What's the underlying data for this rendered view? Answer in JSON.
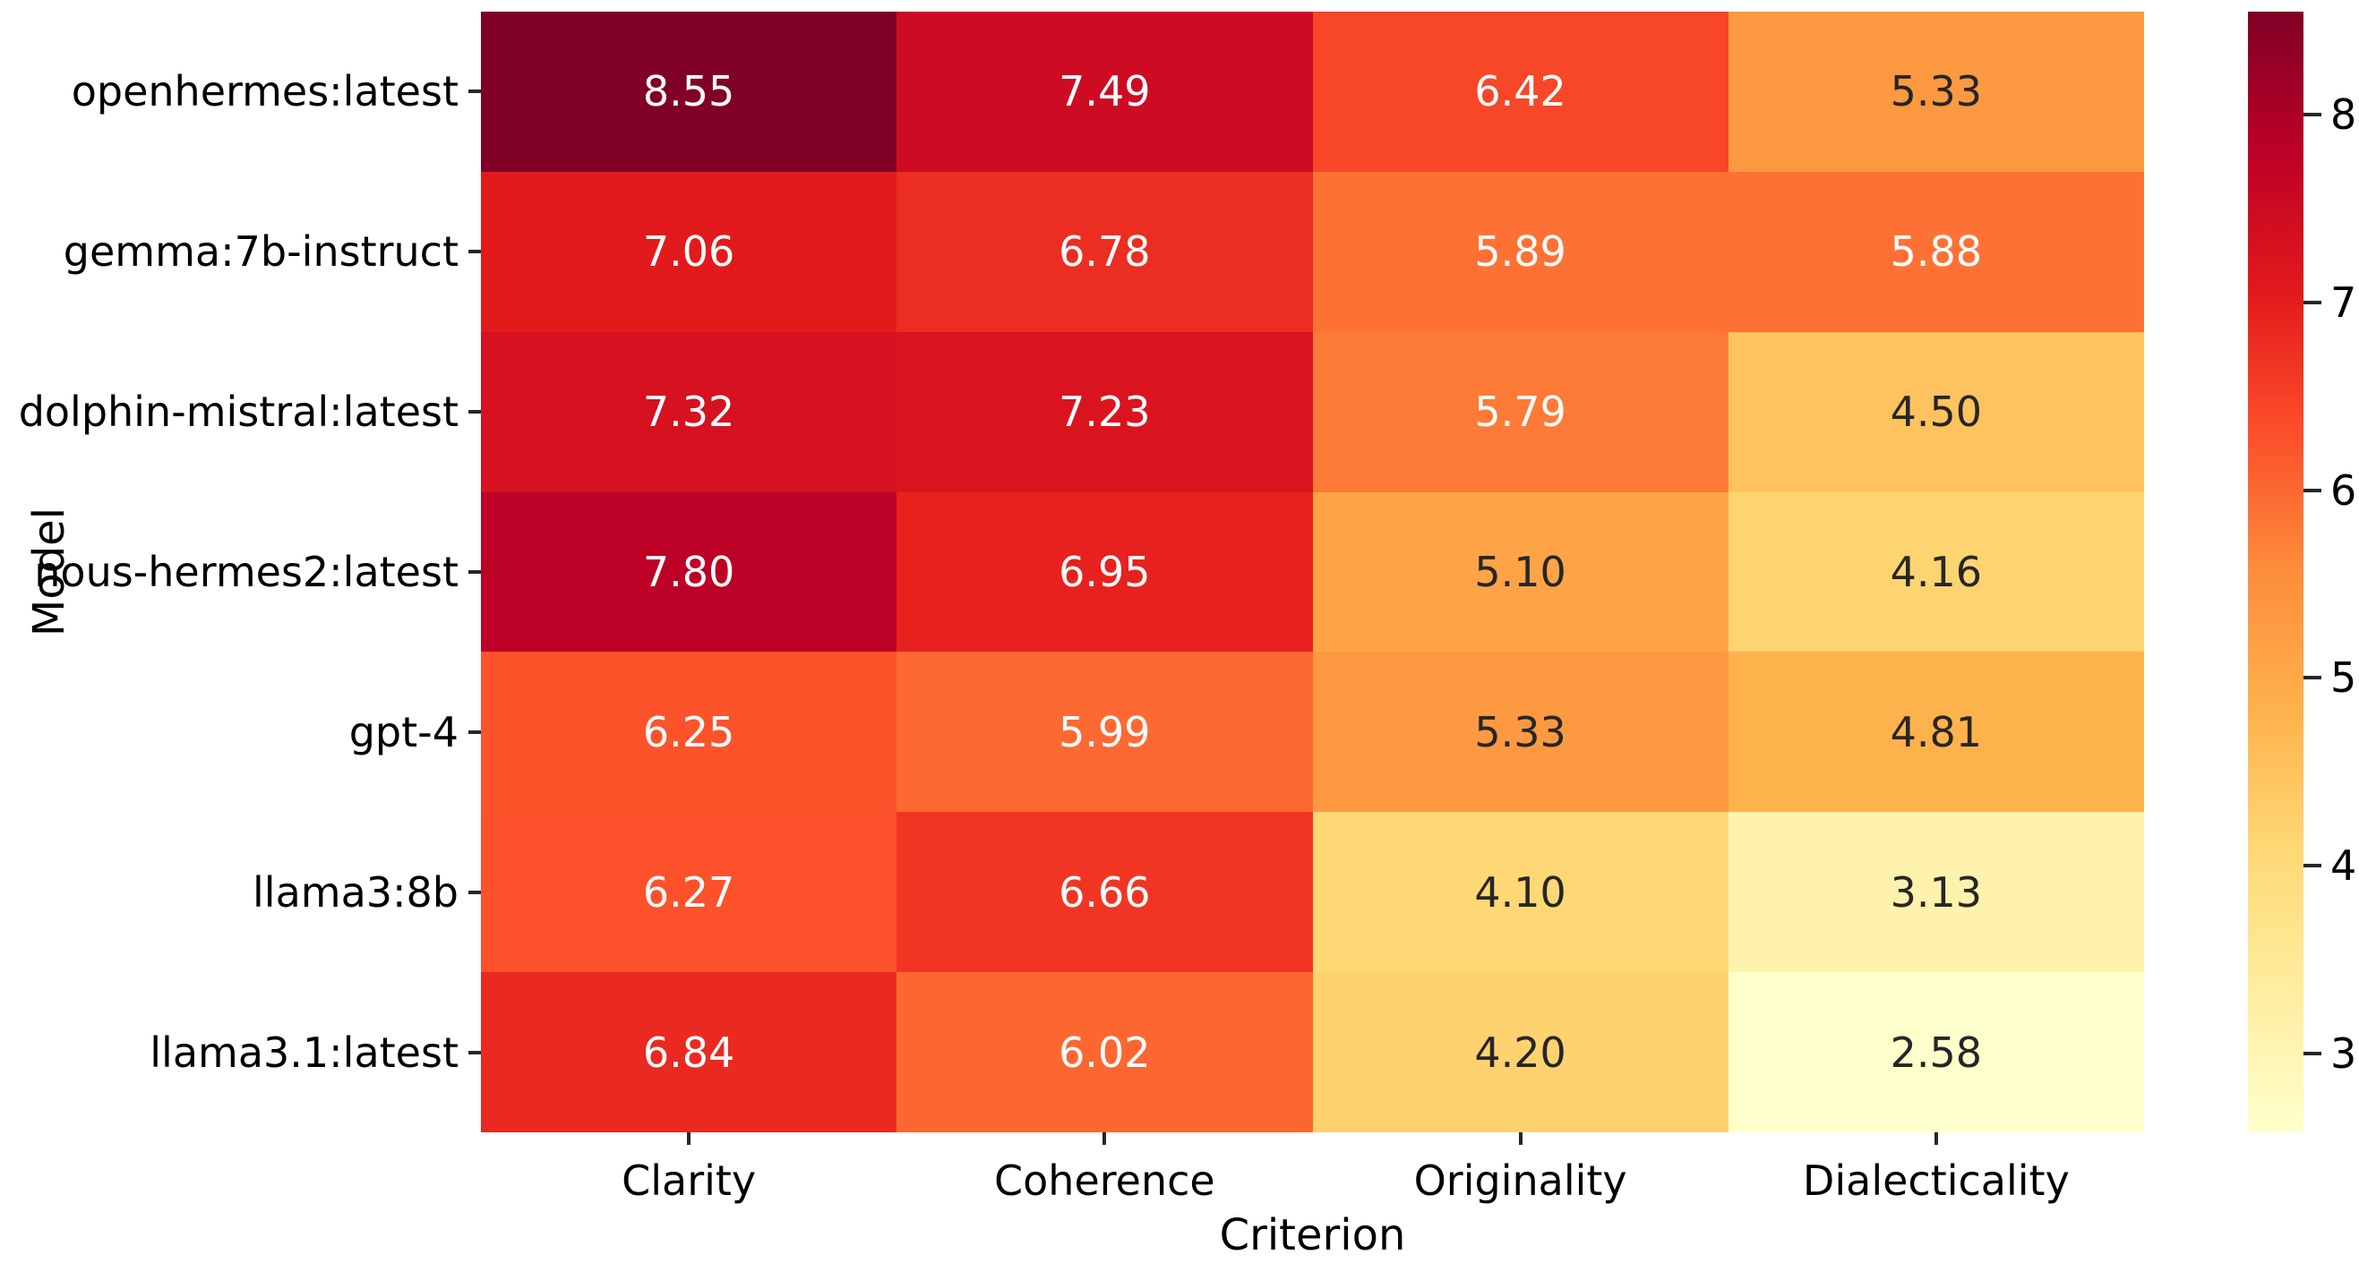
{
  "chart_data": {
    "type": "heatmap",
    "title": "",
    "xlabel": "Criterion",
    "ylabel": "Model",
    "x_categories": [
      "Clarity",
      "Coherence",
      "Originality",
      "Dialecticality"
    ],
    "y_categories": [
      "openhermes:latest",
      "gemma:7b-instruct",
      "dolphin-mistral:latest",
      "nous-hermes2:latest",
      "gpt-4",
      "llama3:8b",
      "llama3.1:latest"
    ],
    "values": [
      [
        8.55,
        7.49,
        6.42,
        5.33
      ],
      [
        7.06,
        6.78,
        5.89,
        5.88
      ],
      [
        7.32,
        7.23,
        5.79,
        4.5
      ],
      [
        7.8,
        6.95,
        5.1,
        4.16
      ],
      [
        6.25,
        5.99,
        5.33,
        4.81
      ],
      [
        6.27,
        6.66,
        4.1,
        3.13
      ],
      [
        6.84,
        6.02,
        4.2,
        2.58
      ]
    ],
    "value_decimals": 2,
    "colormap": {
      "name": "YlOrRd",
      "anchors": [
        "#ffffcc",
        "#ffeda0",
        "#fed976",
        "#feb24c",
        "#fd8d3c",
        "#fc4e2a",
        "#e31a1c",
        "#bd0026",
        "#800026"
      ],
      "vmin": 2.58,
      "vmax": 8.55
    },
    "colorbar_ticks": [
      3,
      4,
      5,
      6,
      7,
      8
    ],
    "annotation_text_colors": {
      "light": "#ffffff",
      "dark": "#262626"
    },
    "tick_color": "#262626",
    "background": "#ffffff",
    "grid": false,
    "legend_position": "right-colorbar"
  }
}
